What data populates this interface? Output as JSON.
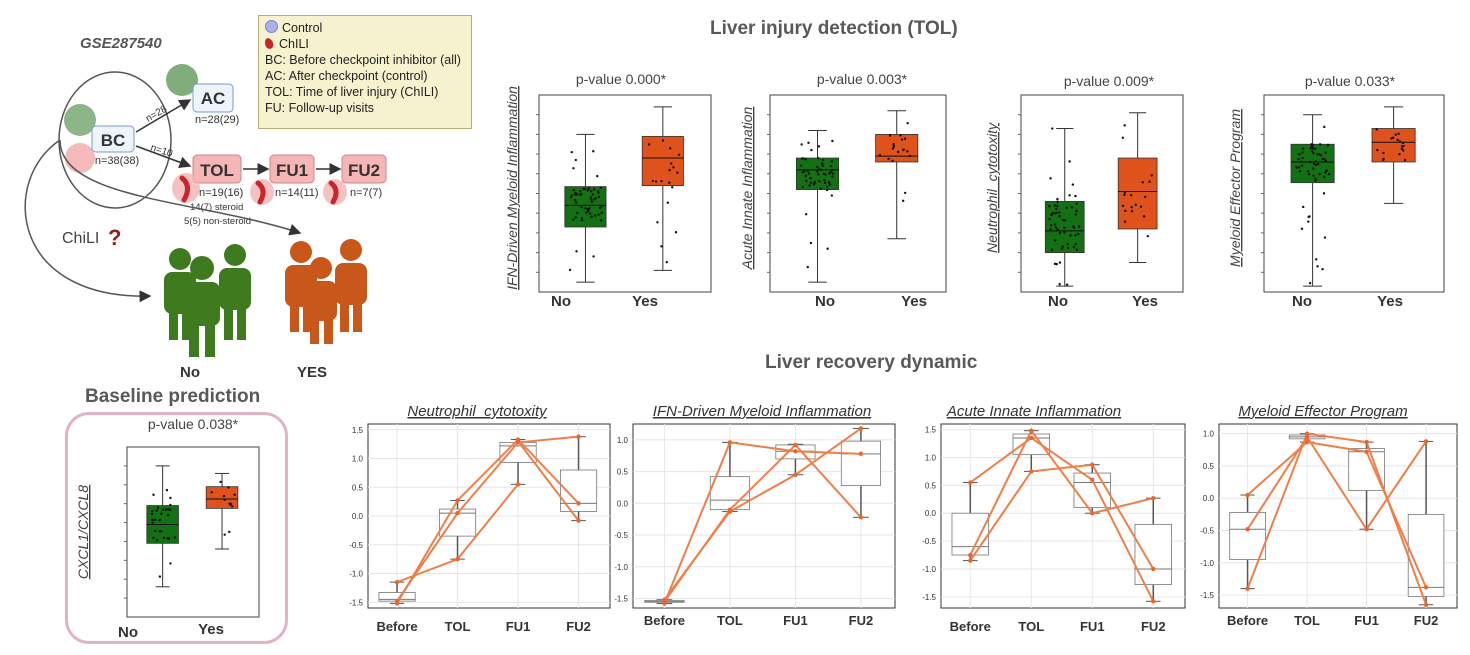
{
  "study_diagram": {
    "dataset": "GSE287540",
    "legend": [
      {
        "icon": "control-dot-icon",
        "text": "Control"
      },
      {
        "icon": "chili-icon",
        "text": "ChILI"
      },
      {
        "text": "BC: Before checkpoint inhibitor (all)"
      },
      {
        "text": "AC: After checkpoint (control)"
      },
      {
        "text": "TOL: Time of liver injury (ChILI)"
      },
      {
        "text": "FU: Follow-up visits"
      }
    ],
    "nodes": {
      "bc": {
        "label": "BC",
        "n": "n=38(38)"
      },
      "ac": {
        "label": "AC",
        "n": "n=28(29)"
      },
      "tol": {
        "label": "TOL",
        "n": "n=19(16)",
        "steroid": "14(7) steroid",
        "non_steroid": "5(5) non-steroid"
      },
      "fu1": {
        "label": "FU1",
        "n": "n=14(11)"
      },
      "fu2": {
        "label": "FU2",
        "n": "n=7(7)"
      }
    },
    "edges": {
      "to_ac": "n=28",
      "to_tol": "n=10"
    },
    "question": "ChiLI",
    "question_mark": "?",
    "group_no": "No",
    "group_yes": "YES",
    "colors": {
      "green": "#3e7b1f",
      "orange": "#c8571a",
      "control": "#9cc59a",
      "chili_node": "#f3b3b3"
    }
  },
  "titles": {
    "injury": "Liver injury detection (TOL)",
    "recovery": "Liver recovery dynamic",
    "baseline": "Baseline prediction"
  },
  "chart_data": [
    {
      "type": "box",
      "panel": "baseline",
      "title": "p-value 0.038*",
      "ylabel": "CXCL1/CXCL8",
      "categories": [
        "No",
        "Yes"
      ],
      "colors": [
        "#137013",
        "#e0521c"
      ],
      "boxes": [
        {
          "min": 1.6,
          "q1": 3.9,
          "median": 4.9,
          "q3": 5.9,
          "max": 8.0
        },
        {
          "min": 3.6,
          "q1": 5.75,
          "median": 6.25,
          "q3": 6.9,
          "max": 7.6
        }
      ]
    },
    {
      "type": "box",
      "panel": "injury",
      "title": "p-value 0.000*",
      "ylabel": "IFN-Driven Myeloid Inflammation",
      "categories": [
        "No",
        "Yes"
      ],
      "colors": [
        "#137013",
        "#e0521c"
      ],
      "boxes": [
        {
          "min": 0.5,
          "q1": 3.3,
          "median": 4.4,
          "q3": 5.35,
          "max": 8.0
        },
        {
          "min": 1.1,
          "q1": 5.4,
          "median": 6.8,
          "q3": 7.9,
          "max": 9.4
        }
      ]
    },
    {
      "type": "box",
      "panel": "injury",
      "title": "p-value 0.003*",
      "ylabel": "Acute Innate Inflammation",
      "categories": [
        "No",
        "Yes"
      ],
      "colors": [
        "#137013",
        "#e0521c"
      ],
      "boxes": [
        {
          "min": 0.5,
          "q1": 5.2,
          "median": 6.2,
          "q3": 6.8,
          "max": 8.2
        },
        {
          "min": 2.7,
          "q1": 6.6,
          "median": 6.9,
          "q3": 8.0,
          "max": 9.2
        }
      ]
    },
    {
      "type": "box",
      "panel": "injury",
      "title": "p-value 0.009*",
      "ylabel": "Neutrophil_cytotoxity",
      "categories": [
        "No",
        "Yes"
      ],
      "colors": [
        "#137013",
        "#e0521c"
      ],
      "boxes": [
        {
          "min": 0.3,
          "q1": 2.0,
          "median": 3.1,
          "q3": 4.6,
          "max": 8.3
        },
        {
          "min": 1.5,
          "q1": 3.2,
          "median": 5.1,
          "q3": 6.8,
          "max": 9.1
        }
      ]
    },
    {
      "type": "box",
      "panel": "injury",
      "title": "p-value 0.033*",
      "ylabel": "Myeloid Effector Program",
      "categories": [
        "No",
        "Yes"
      ],
      "colors": [
        "#137013",
        "#e0521c"
      ],
      "boxes": [
        {
          "min": 0.3,
          "q1": 5.55,
          "median": 6.6,
          "q3": 7.5,
          "max": 9.0
        },
        {
          "min": 4.5,
          "q1": 6.6,
          "median": 7.6,
          "q3": 8.3,
          "max": 9.4
        }
      ]
    },
    {
      "type": "line",
      "panel": "recovery",
      "title": "Neutrophil_cytotoxity",
      "categories": [
        "Before",
        "TOL",
        "FU1",
        "FU2"
      ],
      "yticks": [
        -1.5,
        -1.0,
        -0.5,
        0.0,
        0.5,
        1.0,
        1.5
      ],
      "ylim": [
        -1.6,
        1.6
      ],
      "boxes": [
        {
          "min": -1.52,
          "q1": -1.48,
          "median": -1.45,
          "q3": -1.33,
          "max": -1.15
        },
        {
          "min": -0.75,
          "q1": -0.35,
          "median": 0.05,
          "q3": 0.12,
          "max": 0.27
        },
        {
          "min": 0.55,
          "q1": 0.93,
          "median": 1.22,
          "q3": 1.28,
          "max": 1.33
        },
        {
          "min": -0.08,
          "q1": 0.08,
          "median": 0.22,
          "q3": 0.8,
          "max": 1.38
        }
      ],
      "series": [
        {
          "values": [
            -1.52,
            0.27,
            1.33,
            0.22
          ]
        },
        {
          "values": [
            -1.48,
            0.05,
            1.28,
            1.38
          ]
        },
        {
          "values": [
            -1.15,
            -0.75,
            0.55,
            null
          ]
        },
        {
          "values": [
            null,
            null,
            1.3,
            -0.08
          ]
        }
      ]
    },
    {
      "type": "line",
      "panel": "recovery",
      "title": "IFN-Driven Myeloid Inflammation",
      "categories": [
        "Before",
        "TOL",
        "FU1",
        "FU2"
      ],
      "yticks": [
        -1.5,
        -1.0,
        -0.5,
        0.0,
        0.5,
        1.0
      ],
      "ylim": [
        -1.65,
        1.25
      ],
      "boxes": [
        {
          "min": -1.58,
          "q1": -1.56,
          "median": -1.55,
          "q3": -1.53,
          "max": -1.52
        },
        {
          "min": -0.13,
          "q1": -0.1,
          "median": 0.05,
          "q3": 0.42,
          "max": 0.96
        },
        {
          "min": 0.45,
          "q1": 0.7,
          "median": 0.82,
          "q3": 0.92,
          "max": 0.93
        },
        {
          "min": -0.22,
          "q1": 0.28,
          "median": 0.78,
          "q3": 0.98,
          "max": 1.18
        }
      ],
      "series": [
        {
          "values": [
            -1.58,
            0.96,
            0.82,
            0.78
          ]
        },
        {
          "values": [
            -1.55,
            -0.1,
            0.92,
            -0.22
          ]
        },
        {
          "values": [
            -1.52,
            -0.13,
            0.45,
            1.18
          ]
        }
      ]
    },
    {
      "type": "line",
      "panel": "recovery",
      "title": "Acute Innate Inflammation",
      "categories": [
        "Before",
        "TOL",
        "FU1",
        "FU2"
      ],
      "yticks": [
        -1.5,
        -1.0,
        -0.5,
        0.0,
        0.5,
        1.0,
        1.5
      ],
      "ylim": [
        -1.7,
        1.6
      ],
      "boxes": [
        {
          "min": -0.85,
          "q1": -0.75,
          "median": -0.6,
          "q3": -0.0,
          "max": 0.55
        },
        {
          "min": 0.75,
          "q1": 1.05,
          "median": 1.35,
          "q3": 1.42,
          "max": 1.48
        },
        {
          "min": -0.0,
          "q1": 0.1,
          "median": 0.55,
          "q3": 0.72,
          "max": 0.87
        },
        {
          "min": -1.58,
          "q1": -1.28,
          "median": -1.0,
          "q3": -0.2,
          "max": 0.27
        }
      ],
      "series": [
        {
          "values": [
            0.55,
            1.35,
            0.6,
            -1.58
          ]
        },
        {
          "values": [
            -0.75,
            1.48,
            -0.0,
            0.27
          ]
        },
        {
          "values": [
            -0.85,
            0.75,
            0.87,
            -1.0
          ]
        }
      ]
    },
    {
      "type": "line",
      "panel": "recovery",
      "title": "Myeloid Effector Program",
      "categories": [
        "Before",
        "TOL",
        "FU1",
        "FU2"
      ],
      "yticks": [
        -1.5,
        -1.0,
        -0.5,
        0.0,
        0.5,
        1.0
      ],
      "ylim": [
        -1.7,
        1.15
      ],
      "boxes": [
        {
          "min": -1.4,
          "q1": -0.95,
          "median": -0.48,
          "q3": -0.22,
          "max": 0.05
        },
        {
          "min": 0.87,
          "q1": 0.92,
          "median": 0.95,
          "q3": 0.98,
          "max": 1.0
        },
        {
          "min": -0.48,
          "q1": 0.12,
          "median": 0.72,
          "q3": 0.77,
          "max": 0.87
        },
        {
          "min": -1.65,
          "q1": -1.52,
          "median": -1.38,
          "q3": -0.25,
          "max": 0.88
        }
      ],
      "series": [
        {
          "values": [
            -1.4,
            1.0,
            0.87,
            -1.65
          ]
        },
        {
          "values": [
            0.05,
            0.87,
            0.72,
            -1.38
          ]
        },
        {
          "values": [
            -0.48,
            0.95,
            -0.48,
            0.88
          ]
        }
      ]
    }
  ]
}
